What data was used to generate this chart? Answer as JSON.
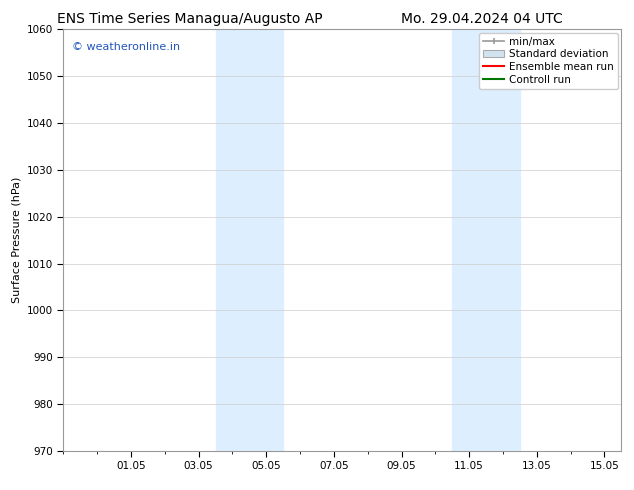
{
  "title_left": "ENS Time Series Managua/Augusto AP",
  "title_right": "Mo. 29.04.2024 04 UTC",
  "ylabel": "Surface Pressure (hPa)",
  "ylim": [
    970,
    1060
  ],
  "yticks": [
    970,
    980,
    990,
    1000,
    1010,
    1020,
    1030,
    1040,
    1050,
    1060
  ],
  "xlim": [
    0,
    16.5
  ],
  "xtick_labels": [
    "01.05",
    "03.05",
    "05.05",
    "07.05",
    "09.05",
    "11.05",
    "13.05",
    "15.05"
  ],
  "xtick_positions": [
    2,
    4,
    6,
    8,
    10,
    12,
    14,
    16
  ],
  "watermark": "© weatheronline.in",
  "watermark_color": "#2255bb",
  "shaded_bands": [
    {
      "x_start": 4.5,
      "x_end": 6.5,
      "color": "#ddeeff"
    },
    {
      "x_start": 11.5,
      "x_end": 13.5,
      "color": "#ddeeff"
    }
  ],
  "legend_entries": [
    {
      "label": "min/max"
    },
    {
      "label": "Standard deviation"
    },
    {
      "label": "Ensemble mean run"
    },
    {
      "label": "Controll run"
    }
  ],
  "legend_colors": {
    "minmax_line": "#999999",
    "std_face": "#d0e4f0",
    "std_edge": "#aaaaaa",
    "ens_line": "#ff0000",
    "ctrl_line": "#007700"
  },
  "grid_color": "#cccccc",
  "background_color": "#ffffff",
  "title_fontsize": 10,
  "axis_label_fontsize": 8,
  "tick_fontsize": 7.5,
  "legend_fontsize": 7.5,
  "watermark_fontsize": 8
}
